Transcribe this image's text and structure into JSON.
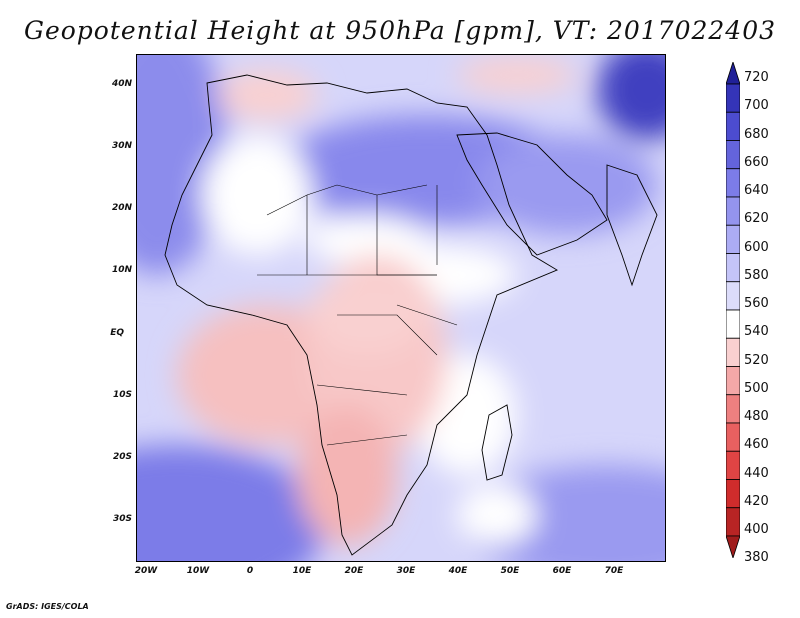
{
  "title": "Geopotential Height at 950hPa [gpm], VT: 2017022403",
  "map": {
    "x_ticks": [
      "20W",
      "10W",
      "0",
      "10E",
      "20E",
      "30E",
      "40E",
      "50E",
      "60E",
      "70E"
    ],
    "y_ticks": [
      "40N",
      "30N",
      "20N",
      "10N",
      "EQ",
      "10S",
      "20S",
      "30S"
    ],
    "region": "Africa and Middle East"
  },
  "colorbar": {
    "levels": [
      "380",
      "400",
      "420",
      "440",
      "460",
      "480",
      "500",
      "520",
      "540",
      "560",
      "580",
      "600",
      "620",
      "640",
      "660",
      "680",
      "700",
      "720"
    ],
    "colors": [
      "#a01c1c",
      "#b82424",
      "#d02c2c",
      "#e04444",
      "#e86060",
      "#ee8080",
      "#f4a8a8",
      "#f9d0d0",
      "#ffffff",
      "#dcdcfa",
      "#c4c4f8",
      "#acacf4",
      "#9494ee",
      "#7c7ce8",
      "#6464dc",
      "#4c4cd0",
      "#3434b8",
      "#202098"
    ]
  },
  "footer": "GrADS: IGES/COLA"
}
